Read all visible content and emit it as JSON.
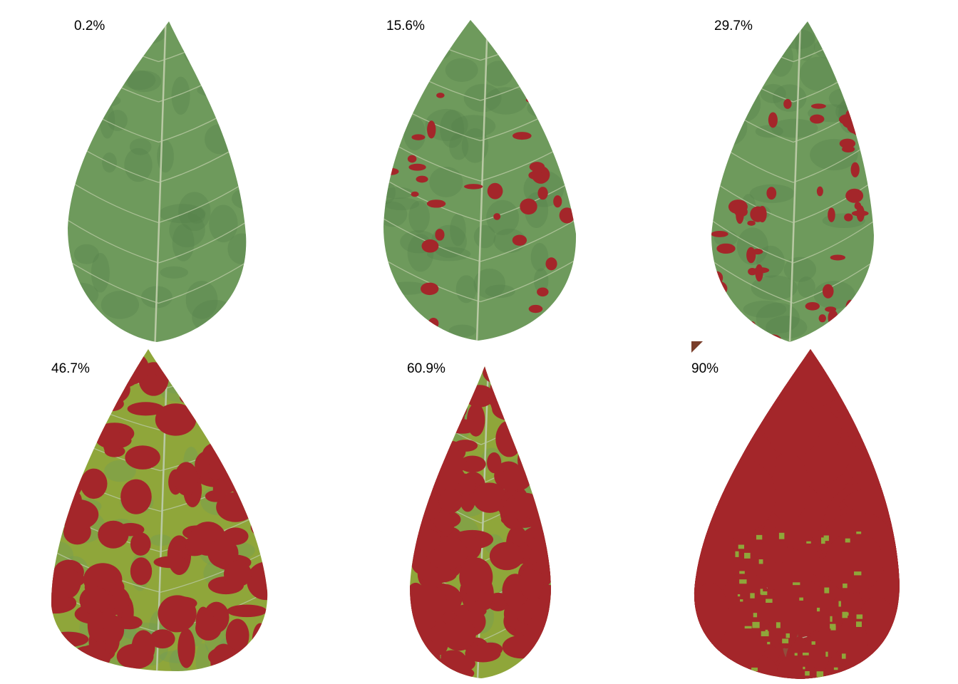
{
  "colors": {
    "background": "#ffffff",
    "leaf_green": "#6e9a5c",
    "leaf_green_dark": "#55804a",
    "leaf_yellow_green": "#8fa63a",
    "lesion_red": "#a4262a",
    "vein": "#b9c9a4"
  },
  "panels": [
    {
      "label": "0.2%",
      "severity": 0.002
    },
    {
      "label": "15.6%",
      "severity": 0.156
    },
    {
      "label": "29.7%",
      "severity": 0.297
    },
    {
      "label": "46.7%",
      "severity": 0.467
    },
    {
      "label": "60.9%",
      "severity": 0.609
    },
    {
      "label": "90%",
      "severity": 0.9
    }
  ]
}
